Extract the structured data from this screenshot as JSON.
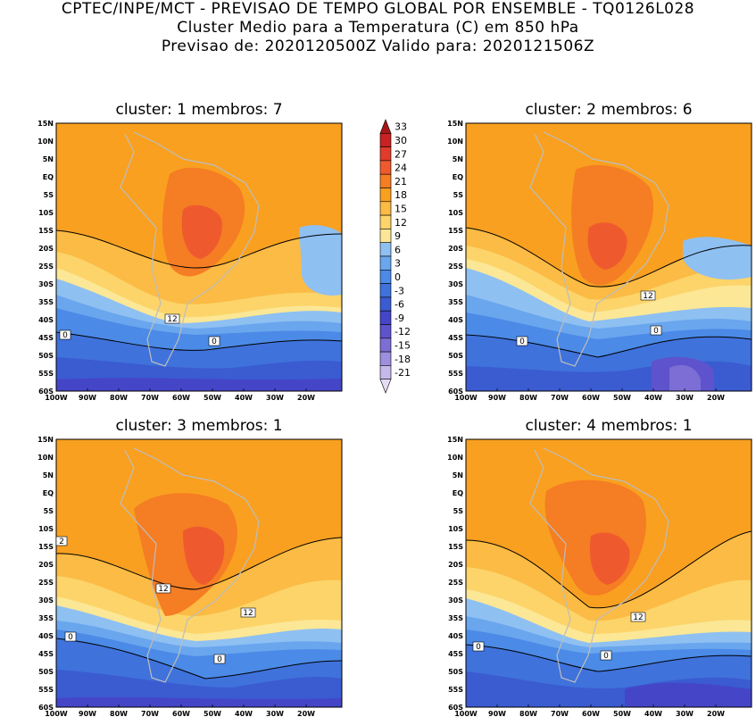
{
  "header": {
    "line1": "CPTEC/INPE/MCT - PREVISAO DE TEMPO GLOBAL POR ENSEMBLE - TQ0126L028",
    "line2": "Cluster Medio para a Temperatura (C) em 850 hPa",
    "line3": "Previsao de: 2020120500Z   Valido para: 2020121506Z"
  },
  "colorbar": {
    "levels": [
      "33",
      "30",
      "27",
      "24",
      "21",
      "18",
      "15",
      "12",
      "9",
      "6",
      "3",
      "0",
      "-3",
      "-6",
      "-9",
      "-12",
      "-15",
      "-18",
      "-21"
    ],
    "colors": [
      "#a51717",
      "#c82222",
      "#e03b2b",
      "#ee5a2e",
      "#f57d23",
      "#f9a020",
      "#fbbb44",
      "#fcd46a",
      "#fbe795",
      "#8fc0f2",
      "#6aa6ee",
      "#4b8ae6",
      "#3f72db",
      "#3b5bd1",
      "#4545c8",
      "#5e53cc",
      "#7c6ed4",
      "#9d8fde",
      "#c6b9ea",
      "#e5dcf4"
    ]
  },
  "axes": {
    "lat_ticks": [
      "15N",
      "10N",
      "5N",
      "EQ",
      "5S",
      "10S",
      "15S",
      "20S",
      "25S",
      "30S",
      "35S",
      "40S",
      "45S",
      "50S",
      "55S",
      "60S"
    ],
    "lon_ticks": [
      "100W",
      "90W",
      "80W",
      "70W",
      "60W",
      "50W",
      "40W",
      "30W",
      "20W"
    ]
  },
  "panels": [
    {
      "title": "cluster: 1   membros: 7",
      "contour_labels": [
        "12",
        "0",
        "0"
      ]
    },
    {
      "title": "cluster: 2   membros: 6",
      "contour_labels": [
        "12",
        "0",
        "0"
      ]
    },
    {
      "title": "cluster: 3   membros: 1",
      "contour_labels": [
        "2",
        "12",
        "12",
        "0",
        "0"
      ]
    },
    {
      "title": "cluster: 4   membros: 1",
      "contour_labels": [
        "12",
        "0",
        "0"
      ]
    }
  ]
}
